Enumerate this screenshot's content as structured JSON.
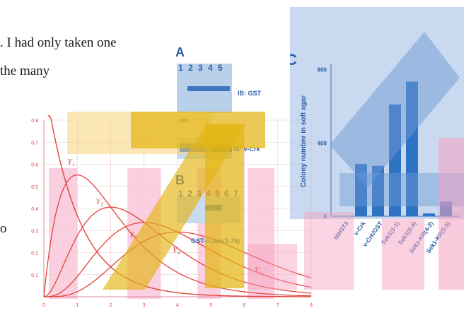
{
  "background_text": {
    "lines": [
      {
        "text": "”"
      },
      {
        "text": ". I had only taken one"
      },
      {
        "text": "the many"
      },
      {
        "text": "o"
      }
    ]
  },
  "left_plot": {
    "y_ticks": [
      "0.8",
      "0.7",
      "0.6",
      "0.5",
      "0.4",
      "0.3",
      "0.2",
      "0.1"
    ],
    "x_ticks": [
      "0",
      "1",
      "2",
      "3",
      "4",
      "5",
      "6",
      "7",
      "8"
    ],
    "curve_labels": [
      "Y₁",
      "Y₂",
      "Y₃",
      "Y₄",
      "Y₅"
    ],
    "line_color": "#e0443a",
    "band_color": "#f5a0bf"
  },
  "blot_panel": {
    "panel_a_label": "A",
    "panel_a_lanes": [
      "1",
      "2",
      "3",
      "4",
      "5"
    ],
    "ib_gst": "IB: GST",
    "ib_vcrk": "IB: v-Crk",
    "panel_b_label": "B",
    "panel_b_lanes": [
      "1",
      "2",
      "3",
      "4",
      "5",
      "6",
      "7"
    ],
    "substrate": "GST-c-Jun(1-79)",
    "text_color": "#2a5da8"
  },
  "bar_chart": {
    "panel_label": "C",
    "bar_color": "#2f73c4",
    "chart_data": {
      "type": "bar",
      "ylabel": "Colony number in soft agar",
      "ylim": [
        0,
        900
      ],
      "yticks": [
        0,
        400,
        800
      ],
      "categories": [
        "NIH3T3",
        "v-Crk",
        "v-Crk/GST",
        "Sek1(3-1)",
        "Sek1(5-4)",
        "Sek1-KR(4-3)",
        "Sek1-KR(5-5)"
      ],
      "values": [
        0,
        285,
        275,
        610,
        735,
        15,
        80
      ]
    }
  },
  "overlays": {
    "yellow_color": "#e3b514",
    "light_yellow_color": "#f7d47a",
    "blue_color": "#6f98d4"
  }
}
